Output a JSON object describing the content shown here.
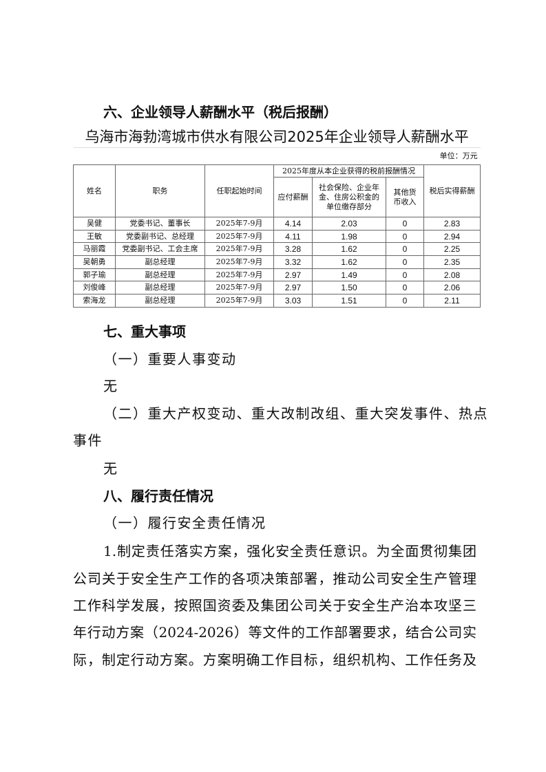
{
  "sections": {
    "s6": "六、企业领导人薪酬水平（税后报酬）",
    "s7": "七、重大事项",
    "s7_1": "（一）重要人事变动",
    "s7_1_body": "无",
    "s7_2_line1": "（二）重大产权变动、重大改制改组、重大突发事件、热点",
    "s7_2_line2": "事件",
    "s7_2_body": "无",
    "s8": "八、履行责任情况",
    "s8_1": "（一）履行安全责任情况",
    "para_lines": [
      "1.制定责任落实方案，强化安全责任意识。为全面贯彻集团",
      "公司关于安全生产工作的各项决策部署，推动公司安全生产管理",
      "工作科学发展，按照国资委及集团公司关于安全生产治本攻坚三",
      "年行动方案（2024-2026）等文件的工作部署要求，结合公司实",
      "际，制定行动方案。方案明确工作目标，组织机构、工作任务及"
    ]
  },
  "table": {
    "title": "乌海市海勃湾城市供水有限公司2025年企业领导人薪酬水平",
    "unit": "单位：万元",
    "headers": {
      "name": "姓名",
      "position": "职务",
      "term": "任职起始时间",
      "group": "2025年度从本企业获得的税前报酬情况",
      "pay": "应付薪酬",
      "social": "社会保险、企业年金、住房公积金的单位缴存部分",
      "other": "其他货币收入",
      "after_tax": "税后实得薪酬"
    },
    "rows": [
      [
        "吴健",
        "党委书记、董事长",
        "2025年7-9月",
        "4.14",
        "2.03",
        "0",
        "2.83"
      ],
      [
        "王敏",
        "党委副书记、总经理",
        "2025年7-9月",
        "4.11",
        "1.98",
        "0",
        "2.94"
      ],
      [
        "马丽霞",
        "党委副书记、工会主席",
        "2025年7-9月",
        "3.28",
        "1.62",
        "0",
        "2.25"
      ],
      [
        "吴朝勇",
        "副总经理",
        "2025年7-9月",
        "3.32",
        "1.62",
        "0",
        "2.35"
      ],
      [
        "郭子瑜",
        "副总经理",
        "2025年7-9月",
        "2.97",
        "1.49",
        "0",
        "2.08"
      ],
      [
        "刘俊峰",
        "副总经理",
        "2025年7-9月",
        "2.97",
        "1.50",
        "0",
        "2.06"
      ],
      [
        "索海龙",
        "副总经理",
        "2025年7-9月",
        "3.03",
        "1.51",
        "0",
        "2.11"
      ]
    ]
  }
}
